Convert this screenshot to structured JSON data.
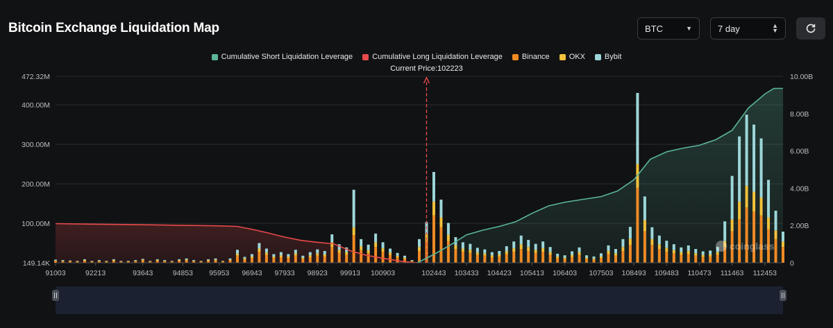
{
  "page": {
    "title": "Bitcoin Exchange Liquidation Map",
    "symbol_value": "BTC",
    "range_value": "7 day",
    "refresh_icon": "refresh-icon",
    "watermark": "coinglass"
  },
  "colors": {
    "short_cum": "#5bb69b",
    "long_cum": "#e84a4a",
    "binance": "#f08a24",
    "okx": "#f2c23b",
    "bybit": "#9dd6d9",
    "current_price_line": "#e84a4a"
  },
  "chart_data": {
    "type": "bar",
    "title": "Bitcoin Exchange Liquidation Map",
    "legend_position": "top-center",
    "legend": [
      {
        "key": "short_cum",
        "label": "Cumulative Short Liquidation Leverage"
      },
      {
        "key": "long_cum",
        "label": "Cumulative Long Liquidation Leverage"
      },
      {
        "key": "binance",
        "label": "Binance"
      },
      {
        "key": "okx",
        "label": "OKX"
      },
      {
        "key": "bybit",
        "label": "Bybit"
      }
    ],
    "current_price": 102223,
    "current_price_label": "Current Price:102223",
    "x_ticks": [
      91003,
      92213,
      93643,
      94853,
      95953,
      96943,
      97933,
      98923,
      99913,
      100903,
      102443,
      103433,
      104423,
      105413,
      106403,
      107503,
      108493,
      109483,
      110473,
      111463,
      112453
    ],
    "xlim": [
      91003,
      113003
    ],
    "y_left": {
      "ticks": [
        149140,
        100000000,
        200000000,
        300000000,
        400000000,
        472320000
      ],
      "tick_labels": [
        "149.14K",
        "100.00M",
        "200.00M",
        "300.00M",
        "400.00M",
        "472.32M"
      ],
      "range": [
        149140,
        472320000
      ]
    },
    "y_right": {
      "ticks": [
        0,
        2000000000,
        4000000000,
        6000000000,
        8000000000,
        10000000000
      ],
      "tick_labels": [
        "0",
        "2.00B",
        "4.00B",
        "6.00B",
        "8.00B",
        "10.00B"
      ],
      "range": [
        0,
        10000000000
      ]
    },
    "series": [
      {
        "name": "Cumulative Long Liquidation Leverage",
        "axis": "right",
        "x": [
          91003,
          92213,
          93643,
          94853,
          95953,
          96493,
          96943,
          97438,
          97933,
          98428,
          98923,
          99418,
          99913,
          100408,
          100903,
          101453,
          101943
        ],
        "values": [
          2100000000.0,
          2070000000.0,
          2040000000.0,
          2010000000.0,
          1980000000.0,
          1950000000.0,
          1800000000.0,
          1600000000.0,
          1380000000.0,
          1200000000.0,
          1100000000.0,
          1020000000.0,
          650000000.0,
          400000000.0,
          250000000.0,
          80000000.0,
          0.0
        ]
      },
      {
        "name": "Cumulative Short Liquidation Leverage",
        "axis": "right",
        "x": [
          101943,
          102443,
          102938,
          103433,
          103928,
          104423,
          104918,
          105413,
          105908,
          106403,
          106953,
          107503,
          107998,
          108493,
          108988,
          109483,
          109978,
          110473,
          110968,
          111463,
          111958,
          112453,
          112728,
          113003
        ],
        "values": [
          0.0,
          450000000.0,
          950000000.0,
          1500000000.0,
          1750000000.0,
          1950000000.0,
          2200000000.0,
          2650000000.0,
          3050000000.0,
          3250000000.0,
          3400000000.0,
          3550000000.0,
          3850000000.0,
          4450000000.0,
          5550000000.0,
          5950000000.0,
          6150000000.0,
          6300000000.0,
          6600000000.0,
          7100000000.0,
          8300000000.0,
          9050000000.0,
          9350000000.0,
          9350000000.0
        ]
      }
    ],
    "bars": {
      "description_of_stack": [
        "binance",
        "okx",
        "bybit"
      ],
      "x": [
        91003,
        91223,
        91443,
        91663,
        91883,
        92103,
        92323,
        92543,
        92763,
        92983,
        93203,
        93423,
        93643,
        93863,
        94083,
        94303,
        94523,
        94743,
        94963,
        95183,
        95403,
        95623,
        95843,
        96063,
        96283,
        96503,
        96723,
        96943,
        97163,
        97383,
        97603,
        97823,
        98043,
        98263,
        98483,
        98703,
        98923,
        99143,
        99363,
        99583,
        99803,
        100023,
        100243,
        100463,
        100683,
        100903,
        101123,
        101343,
        101563,
        101783,
        102003,
        102223,
        102443,
        102663,
        102883,
        103103,
        103323,
        103543,
        103763,
        103983,
        104203,
        104423,
        104643,
        104863,
        105083,
        105303,
        105523,
        105743,
        105963,
        106183,
        106403,
        106623,
        106843,
        107063,
        107283,
        107503,
        107723,
        107943,
        108163,
        108383,
        108603,
        108823,
        109043,
        109263,
        109483,
        109703,
        109923,
        110143,
        110363,
        110583,
        110803,
        111023,
        111243,
        111463,
        111683,
        111903,
        112123,
        112343,
        112563,
        112783,
        113003
      ],
      "binance": [
        5000000.0,
        4000000.0,
        4000000.0,
        3000000.0,
        5000000.0,
        3000000.0,
        4000000.0,
        3000000.0,
        5000000.0,
        3000000.0,
        3000000.0,
        4000000.0,
        6000000.0,
        3000000.0,
        5000000.0,
        4000000.0,
        3000000.0,
        5000000.0,
        6000000.0,
        4000000.0,
        3000000.0,
        5000000.0,
        6000000.0,
        3000000.0,
        6000000.0,
        18000000.0,
        8000000.0,
        12000000.0,
        28000000.0,
        20000000.0,
        12000000.0,
        14000000.0,
        12000000.0,
        18000000.0,
        10000000.0,
        14000000.0,
        18000000.0,
        16000000.0,
        40000000.0,
        25000000.0,
        20000000.0,
        70000000.0,
        32000000.0,
        24000000.0,
        40000000.0,
        28000000.0,
        20000000.0,
        14000000.0,
        10000000.0,
        4000000.0,
        30000000.0,
        55000000.0,
        120000000.0,
        90000000.0,
        55000000.0,
        35000000.0,
        28000000.0,
        25000000.0,
        20000000.0,
        18000000.0,
        14000000.0,
        16000000.0,
        22000000.0,
        28000000.0,
        35000000.0,
        30000000.0,
        25000000.0,
        28000000.0,
        20000000.0,
        12000000.0,
        10000000.0,
        15000000.0,
        20000000.0,
        10000000.0,
        8000000.0,
        12000000.0,
        22000000.0,
        18000000.0,
        30000000.0,
        45000000.0,
        190000000.0,
        80000000.0,
        45000000.0,
        35000000.0,
        28000000.0,
        24000000.0,
        20000000.0,
        22000000.0,
        18000000.0,
        15000000.0,
        16000000.0,
        20000000.0,
        40000000.0,
        80000000.0,
        110000000.0,
        140000000.0,
        130000000.0,
        120000000.0,
        85000000.0,
        60000000.0,
        40000000.0
      ],
      "okx": [
        1000000.0,
        1000000.0,
        1000000.0,
        1000000.0,
        2000000.0,
        1000000.0,
        1000000.0,
        1000000.0,
        2000000.0,
        1000000.0,
        1000000.0,
        1000000.0,
        2000000.0,
        1000000.0,
        2000000.0,
        1000000.0,
        1000000.0,
        2000000.0,
        2000000.0,
        1000000.0,
        1000000.0,
        2000000.0,
        2000000.0,
        1000000.0,
        2000000.0,
        5000000.0,
        3000000.0,
        4000000.0,
        8000000.0,
        6000000.0,
        4000000.0,
        5000000.0,
        4000000.0,
        6000000.0,
        3000000.0,
        5000000.0,
        6000000.0,
        5000000.0,
        12000000.0,
        8000000.0,
        7000000.0,
        20000000.0,
        10000000.0,
        8000000.0,
        12000000.0,
        9000000.0,
        6000000.0,
        4000000.0,
        3000000.0,
        1000000.0,
        10000000.0,
        18000000.0,
        35000000.0,
        25000000.0,
        16000000.0,
        10000000.0,
        8000000.0,
        8000000.0,
        6000000.0,
        6000000.0,
        5000000.0,
        5000000.0,
        7000000.0,
        9000000.0,
        12000000.0,
        10000000.0,
        8000000.0,
        9000000.0,
        7000000.0,
        4000000.0,
        3000000.0,
        5000000.0,
        7000000.0,
        3000000.0,
        3000000.0,
        4000000.0,
        8000000.0,
        6000000.0,
        10000000.0,
        16000000.0,
        60000000.0,
        28000000.0,
        15000000.0,
        12000000.0,
        10000000.0,
        8000000.0,
        7000000.0,
        8000000.0,
        6000000.0,
        5000000.0,
        5000000.0,
        7000000.0,
        15000000.0,
        30000000.0,
        45000000.0,
        55000000.0,
        50000000.0,
        45000000.0,
        30000000.0,
        22000000.0,
        14000000.0
      ],
      "bybit": [
        2000000.0,
        2000000.0,
        1000000.0,
        1000000.0,
        2000000.0,
        1000000.0,
        2000000.0,
        1000000.0,
        2000000.0,
        1000000.0,
        1000000.0,
        2000000.0,
        2000000.0,
        1000000.0,
        2000000.0,
        2000000.0,
        1000000.0,
        2000000.0,
        3000000.0,
        2000000.0,
        1000000.0,
        2000000.0,
        3000000.0,
        1000000.0,
        3000000.0,
        10000000.0,
        4000000.0,
        6000000.0,
        14000000.0,
        10000000.0,
        6000000.0,
        8000000.0,
        6000000.0,
        9000000.0,
        5000000.0,
        8000000.0,
        10000000.0,
        9000000.0,
        20000000.0,
        14000000.0,
        12000000.0,
        95000000.0,
        18000000.0,
        14000000.0,
        22000000.0,
        15000000.0,
        10000000.0,
        7000000.0,
        5000000.0,
        2000000.0,
        20000000.0,
        30000000.0,
        75000000.0,
        45000000.0,
        30000000.0,
        20000000.0,
        16000000.0,
        15000000.0,
        12000000.0,
        10000000.0,
        8000000.0,
        9000000.0,
        13000000.0,
        17000000.0,
        22000000.0,
        18000000.0,
        15000000.0,
        17000000.0,
        13000000.0,
        7000000.0,
        6000000.0,
        9000000.0,
        12000000.0,
        6000000.0,
        5000000.0,
        8000000.0,
        14000000.0,
        11000000.0,
        20000000.0,
        30000000.0,
        180000000.0,
        60000000.0,
        30000000.0,
        22000000.0,
        18000000.0,
        15000000.0,
        12000000.0,
        14000000.0,
        11000000.0,
        9000000.0,
        10000000.0,
        13000000.0,
        50000000.0,
        110000000.0,
        165000000.0,
        180000000.0,
        170000000.0,
        150000000.0,
        95000000.0,
        50000000.0,
        25000000.0
      ]
    }
  }
}
